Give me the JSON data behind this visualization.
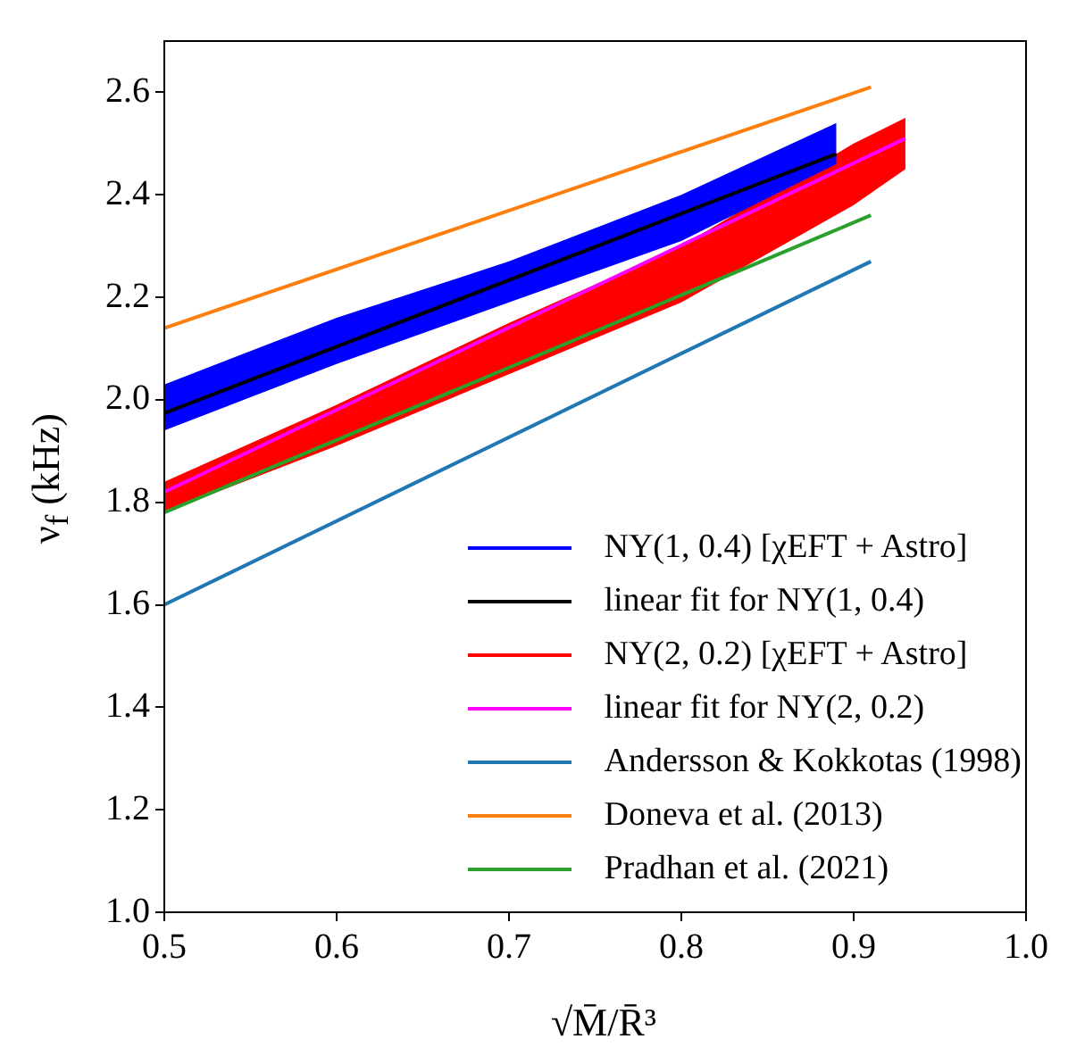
{
  "chart_data": {
    "type": "line",
    "xlabel": "√M̄/R̄³",
    "ylabel": "ν$_{f}$ (kHz)",
    "xlim": [
      0.5,
      1.0
    ],
    "xticks": [
      0.5,
      0.6,
      0.7,
      0.8,
      0.9,
      {
        "value": 1,
        "label": "1.0"
      }
    ],
    "ylim": [
      1.0,
      2.7
    ],
    "yticks": [
      {
        "value": 1,
        "label": "1.0"
      },
      1.2,
      1.4,
      1.6,
      1.8,
      {
        "value": 2,
        "label": "2.0"
      },
      2.2,
      2.4,
      2.6
    ],
    "grid": false,
    "legend": "bottom right",
    "marker": "none",
    "line_style": "solid",
    "series": [
      {
        "name": "NY(1, 0.4) [χEFT + Astro]",
        "color": "#0000ff",
        "x": [
          0.5,
          0.6,
          0.7,
          0.8,
          0.89
        ],
        "values": [
          null,
          null,
          null,
          null,
          null
        ],
        "lower": [
          1.94,
          2.07,
          2.19,
          2.31,
          2.46
        ],
        "upper": [
          2.03,
          2.16,
          2.27,
          2.4,
          2.54
        ]
      },
      {
        "name": "linear fit for NY(1, 0.4)",
        "color": "#000000",
        "x": [
          0.5,
          0.89
        ],
        "values": [
          1.974,
          2.48
        ]
      },
      {
        "name": "NY(2, 0.2) [χEFT + Astro]",
        "color": "#ff0000",
        "x": [
          0.5,
          0.6,
          0.7,
          0.8,
          0.9,
          0.93
        ],
        "values": [
          null,
          null,
          null,
          null,
          null,
          null
        ],
        "lower": [
          1.78,
          1.91,
          2.05,
          2.19,
          2.38,
          2.45
        ],
        "upper": [
          1.84,
          1.99,
          2.15,
          2.3,
          2.5,
          2.55
        ]
      },
      {
        "name": "linear fit for NY(2, 0.2)",
        "color": "#ff00ff",
        "x": [
          0.5,
          0.93
        ],
        "values": [
          1.82,
          2.51
        ]
      },
      {
        "name": "Andersson & Kokkotas (1998)",
        "color": "#1f77b4",
        "x": [
          0.5,
          0.91
        ],
        "values": [
          1.6,
          2.27
        ]
      },
      {
        "name": "Doneva et al. (2013)",
        "color": "#ff7f0e",
        "x": [
          0.5,
          0.91
        ],
        "values": [
          2.14,
          2.61
        ]
      },
      {
        "name": "Pradhan et al. (2021)",
        "color": "#2ca02c",
        "x": [
          0.5,
          0.91
        ],
        "values": [
          1.78,
          2.36
        ]
      }
    ]
  }
}
